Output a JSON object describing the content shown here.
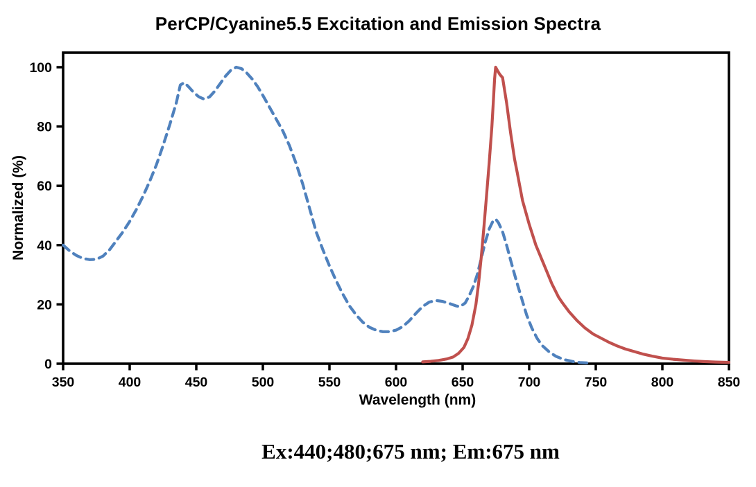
{
  "page": {
    "background": "#ffffff"
  },
  "chart_data": {
    "type": "line",
    "title": "PerCP/Cyanine5.5 Excitation and Emission Spectra",
    "xlabel": "Wavelength (nm)",
    "ylabel": "Normalized (%)",
    "caption": "Ex:440;480;675 nm; Em:675 nm",
    "xlim": [
      350,
      850
    ],
    "ylim": [
      0,
      100
    ],
    "x_ticks": [
      "350",
      "400",
      "450",
      "500",
      "550",
      "600",
      "650",
      "700",
      "750",
      "800",
      "850"
    ],
    "y_ticks": [
      "0",
      "20",
      "40",
      "60",
      "80",
      "100"
    ],
    "grid": false,
    "legend_position": "none",
    "axis_color": "#000000",
    "series": [
      {
        "name": "Excitation",
        "style": "dashed",
        "color": "#4f81bd",
        "points": [
          [
            350,
            40
          ],
          [
            355,
            38
          ],
          [
            360,
            36.5
          ],
          [
            365,
            35.5
          ],
          [
            370,
            35.1
          ],
          [
            375,
            35.2
          ],
          [
            380,
            36.3
          ],
          [
            385,
            38.5
          ],
          [
            390,
            41.5
          ],
          [
            395,
            44.5
          ],
          [
            400,
            48
          ],
          [
            405,
            52
          ],
          [
            410,
            56.5
          ],
          [
            415,
            61.5
          ],
          [
            420,
            67
          ],
          [
            425,
            73.5
          ],
          [
            430,
            80.5
          ],
          [
            435,
            88
          ],
          [
            438,
            94
          ],
          [
            441,
            94.8
          ],
          [
            444,
            93.5
          ],
          [
            448,
            91.5
          ],
          [
            452,
            90
          ],
          [
            456,
            89.2
          ],
          [
            460,
            90
          ],
          [
            464,
            92
          ],
          [
            468,
            94.5
          ],
          [
            472,
            97
          ],
          [
            476,
            99
          ],
          [
            480,
            100
          ],
          [
            484,
            99.5
          ],
          [
            488,
            98
          ],
          [
            492,
            96
          ],
          [
            496,
            93.5
          ],
          [
            500,
            90.5
          ],
          [
            505,
            86.5
          ],
          [
            510,
            82.5
          ],
          [
            515,
            78.5
          ],
          [
            520,
            73.5
          ],
          [
            525,
            67.5
          ],
          [
            530,
            60.5
          ],
          [
            535,
            52.5
          ],
          [
            540,
            44.5
          ],
          [
            545,
            38.5
          ],
          [
            550,
            33
          ],
          [
            555,
            28
          ],
          [
            560,
            23.5
          ],
          [
            565,
            19.5
          ],
          [
            570,
            16.5
          ],
          [
            575,
            14
          ],
          [
            580,
            12.3
          ],
          [
            585,
            11.3
          ],
          [
            590,
            10.8
          ],
          [
            595,
            10.8
          ],
          [
            600,
            11.3
          ],
          [
            605,
            12.5
          ],
          [
            610,
            14.5
          ],
          [
            615,
            17
          ],
          [
            620,
            19.3
          ],
          [
            625,
            20.8
          ],
          [
            630,
            21.3
          ],
          [
            635,
            21
          ],
          [
            640,
            20.3
          ],
          [
            645,
            19.5
          ],
          [
            648,
            19.2
          ],
          [
            652,
            20.5
          ],
          [
            655,
            23
          ],
          [
            658,
            26
          ],
          [
            661,
            30
          ],
          [
            664,
            35.5
          ],
          [
            667,
            41
          ],
          [
            670,
            45.5
          ],
          [
            673,
            48.3
          ],
          [
            675,
            48.7
          ],
          [
            677,
            47.5
          ],
          [
            680,
            44.5
          ],
          [
            683,
            40
          ],
          [
            686,
            35
          ],
          [
            690,
            28.5
          ],
          [
            694,
            22.5
          ],
          [
            698,
            16.5
          ],
          [
            702,
            12
          ],
          [
            706,
            8.5
          ],
          [
            710,
            6
          ],
          [
            715,
            4
          ],
          [
            720,
            2.5
          ],
          [
            726,
            1.4
          ],
          [
            732,
            0.8
          ],
          [
            738,
            0.4
          ],
          [
            745,
            0.2
          ]
        ]
      },
      {
        "name": "Emission",
        "style": "solid",
        "color": "#c0504d",
        "points": [
          [
            620,
            0.6
          ],
          [
            626,
            0.8
          ],
          [
            632,
            1.1
          ],
          [
            638,
            1.6
          ],
          [
            643,
            2.3
          ],
          [
            647,
            3.5
          ],
          [
            651,
            5.5
          ],
          [
            654,
            8.5
          ],
          [
            657,
            13
          ],
          [
            660,
            20
          ],
          [
            662,
            27
          ],
          [
            664,
            36
          ],
          [
            666,
            46
          ],
          [
            668,
            57
          ],
          [
            670,
            68
          ],
          [
            672,
            80
          ],
          [
            673,
            88
          ],
          [
            674,
            96
          ],
          [
            674.8,
            100
          ],
          [
            676,
            99
          ],
          [
            678,
            97.5
          ],
          [
            680,
            96.5
          ],
          [
            683,
            88
          ],
          [
            686,
            78
          ],
          [
            689,
            69
          ],
          [
            691,
            64.5
          ],
          [
            695,
            55
          ],
          [
            700,
            47
          ],
          [
            705,
            40
          ],
          [
            711,
            33.5
          ],
          [
            717,
            27
          ],
          [
            722,
            22.5
          ],
          [
            725,
            20.5
          ],
          [
            730,
            17.5
          ],
          [
            736,
            14.5
          ],
          [
            742,
            12
          ],
          [
            748,
            10
          ],
          [
            754,
            8.6
          ],
          [
            760,
            7.2
          ],
          [
            766,
            6
          ],
          [
            772,
            5
          ],
          [
            778,
            4.2
          ],
          [
            785,
            3.3
          ],
          [
            792,
            2.6
          ],
          [
            800,
            1.9
          ],
          [
            808,
            1.5
          ],
          [
            816,
            1.2
          ],
          [
            824,
            0.9
          ],
          [
            832,
            0.7
          ],
          [
            840,
            0.55
          ],
          [
            850,
            0.45
          ]
        ]
      }
    ]
  }
}
